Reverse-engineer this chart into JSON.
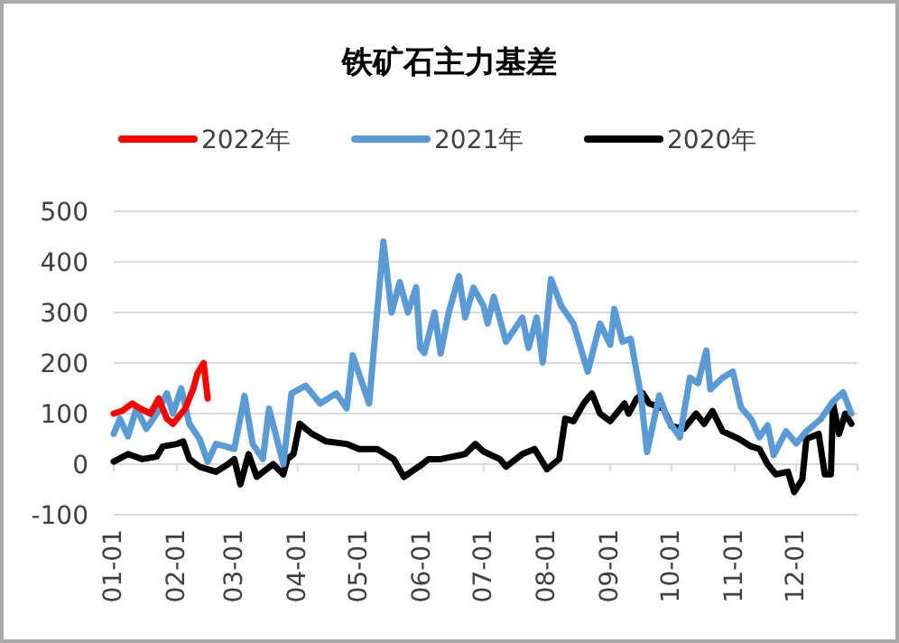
{
  "chart_data": {
    "type": "line",
    "title": "铁矿石主力基差",
    "legend": "top",
    "grid": "y",
    "line_style": "solid",
    "marker": "none",
    "xlim": [
      "--01-01",
      "--12-31"
    ],
    "xticks": [
      {
        "value": "--01-01",
        "label": "01-01"
      },
      {
        "value": "--02-01",
        "label": "02-01"
      },
      {
        "value": "--03-01",
        "label": "03-01"
      },
      {
        "value": "--04-01",
        "label": "04-01"
      },
      {
        "value": "--05-01",
        "label": "05-01"
      },
      {
        "value": "--06-01",
        "label": "06-01"
      },
      {
        "value": "--07-01",
        "label": "07-01"
      },
      {
        "value": "--08-01",
        "label": "08-01"
      },
      {
        "value": "--09-01",
        "label": "09-01"
      },
      {
        "value": "--10-01",
        "label": "10-01"
      },
      {
        "value": "--11-01",
        "label": "11-01"
      },
      {
        "value": "--12-01",
        "label": "12-01"
      }
    ],
    "ylim": [
      -100,
      500
    ],
    "yticks": [
      -100,
      0,
      100,
      200,
      300,
      400,
      500
    ],
    "series": [
      {
        "name": "2022年",
        "color": "#ff0000",
        "x": [
          "--01-01",
          "--01-05",
          "--01-10",
          "--01-14",
          "--01-19",
          "--01-23",
          "--01-27",
          "--01-30",
          "--02-05",
          "--02-09",
          "--02-11",
          "--02-14",
          "--02-16"
        ],
        "values": [
          100,
          105,
          120,
          110,
          100,
          130,
          90,
          80,
          110,
          150,
          180,
          200,
          130
        ]
      },
      {
        "name": "2021年",
        "color": "#5b9bd5",
        "x": [
          "--01-01",
          "--01-04",
          "--01-08",
          "--01-12",
          "--01-17",
          "--01-22",
          "--01-27",
          "--01-30",
          "--02-03",
          "--02-07",
          "--02-12",
          "--02-16",
          "--02-20",
          "--02-25",
          "--03-01",
          "--03-06",
          "--03-10",
          "--03-15",
          "--03-18",
          "--03-25",
          "--03-29",
          "--04-05",
          "--04-12",
          "--04-20",
          "--04-25",
          "--04-28",
          "--05-06",
          "--05-11",
          "--05-13",
          "--05-17",
          "--05-21",
          "--05-25",
          "--05-29",
          "--05-31",
          "--06-02",
          "--06-07",
          "--06-10",
          "--06-14",
          "--06-19",
          "--06-22",
          "--06-26",
          "--07-01",
          "--07-03",
          "--07-06",
          "--07-12",
          "--07-20",
          "--07-23",
          "--07-27",
          "--07-30",
          "--08-03",
          "--08-08",
          "--08-14",
          "--08-21",
          "--08-27",
          "--09-01",
          "--09-03",
          "--09-07",
          "--09-11",
          "--09-16",
          "--09-19",
          "--09-25",
          "--09-29",
          "--10-05",
          "--10-10",
          "--10-14",
          "--10-18",
          "--10-20",
          "--10-26",
          "--10-31",
          "--11-04",
          "--11-09",
          "--11-13",
          "--11-17",
          "--11-20",
          "--11-26",
          "--12-01",
          "--12-06",
          "--12-13",
          "--12-19",
          "--12-24",
          "--12-28"
        ],
        "values": [
          60,
          90,
          55,
          110,
          70,
          100,
          140,
          100,
          150,
          80,
          50,
          5,
          40,
          35,
          30,
          135,
          40,
          10,
          110,
          0,
          140,
          155,
          120,
          140,
          110,
          215,
          120,
          350,
          440,
          300,
          360,
          300,
          350,
          230,
          220,
          300,
          219,
          301,
          372,
          290,
          349,
          313,
          278,
          331,
          242,
          290,
          230,
          290,
          201,
          366,
          313,
          278,
          183,
          278,
          236,
          307,
          242,
          248,
          136,
          24,
          136,
          89,
          53,
          171,
          160,
          225,
          148,
          171,
          183,
          112,
          89,
          53,
          77,
          18,
          65,
          41,
          65,
          89,
          124,
          142,
          100
        ]
      },
      {
        "name": "2020年",
        "color": "#000000",
        "x": [
          "--01-01",
          "--01-08",
          "--01-15",
          "--01-22",
          "--01-25",
          "--02-01",
          "--02-04",
          "--02-07",
          "--02-12",
          "--02-20",
          "--02-26",
          "--03-01",
          "--03-04",
          "--03-08",
          "--03-12",
          "--03-20",
          "--03-25",
          "--03-27",
          "--03-30",
          "--04-02",
          "--04-08",
          "--04-15",
          "--04-25",
          "--05-01",
          "--05-10",
          "--05-18",
          "--05-23",
          "--06-01",
          "--06-04",
          "--06-10",
          "--06-22",
          "--06-27",
          "--07-01",
          "--07-09",
          "--07-12",
          "--07-20",
          "--07-26",
          "--08-01",
          "--08-07",
          "--08-10",
          "--08-14",
          "--08-19",
          "--08-23",
          "--08-27",
          "--09-01",
          "--09-08",
          "--09-10",
          "--09-14",
          "--09-17",
          "--09-20",
          "--09-27",
          "--10-01",
          "--10-07",
          "--10-13",
          "--10-17",
          "--10-21",
          "--10-26",
          "--11-03",
          "--11-09",
          "--11-13",
          "--11-17",
          "--11-21",
          "--11-27",
          "--11-30",
          "--12-04",
          "--12-06",
          "--12-12",
          "--12-15",
          "--12-18",
          "--12-19",
          "--12-22",
          "--12-25",
          "--12-28"
        ],
        "values": [
          5,
          20,
          10,
          15,
          35,
          40,
          45,
          10,
          -5,
          -15,
          0,
          10,
          -40,
          20,
          -25,
          0,
          -20,
          10,
          20,
          80,
          60,
          45,
          40,
          30,
          30,
          10,
          -25,
          0,
          10,
          10,
          20,
          40,
          25,
          10,
          -5,
          20,
          30,
          -10,
          10,
          90,
          85,
          120,
          140,
          100,
          85,
          120,
          100,
          130,
          140,
          120,
          110,
          75,
          70,
          100,
          80,
          105,
          65,
          50,
          35,
          30,
          0,
          -20,
          -15,
          -55,
          -30,
          50,
          60,
          -20,
          -20,
          120,
          60,
          100,
          80
        ]
      }
    ]
  }
}
